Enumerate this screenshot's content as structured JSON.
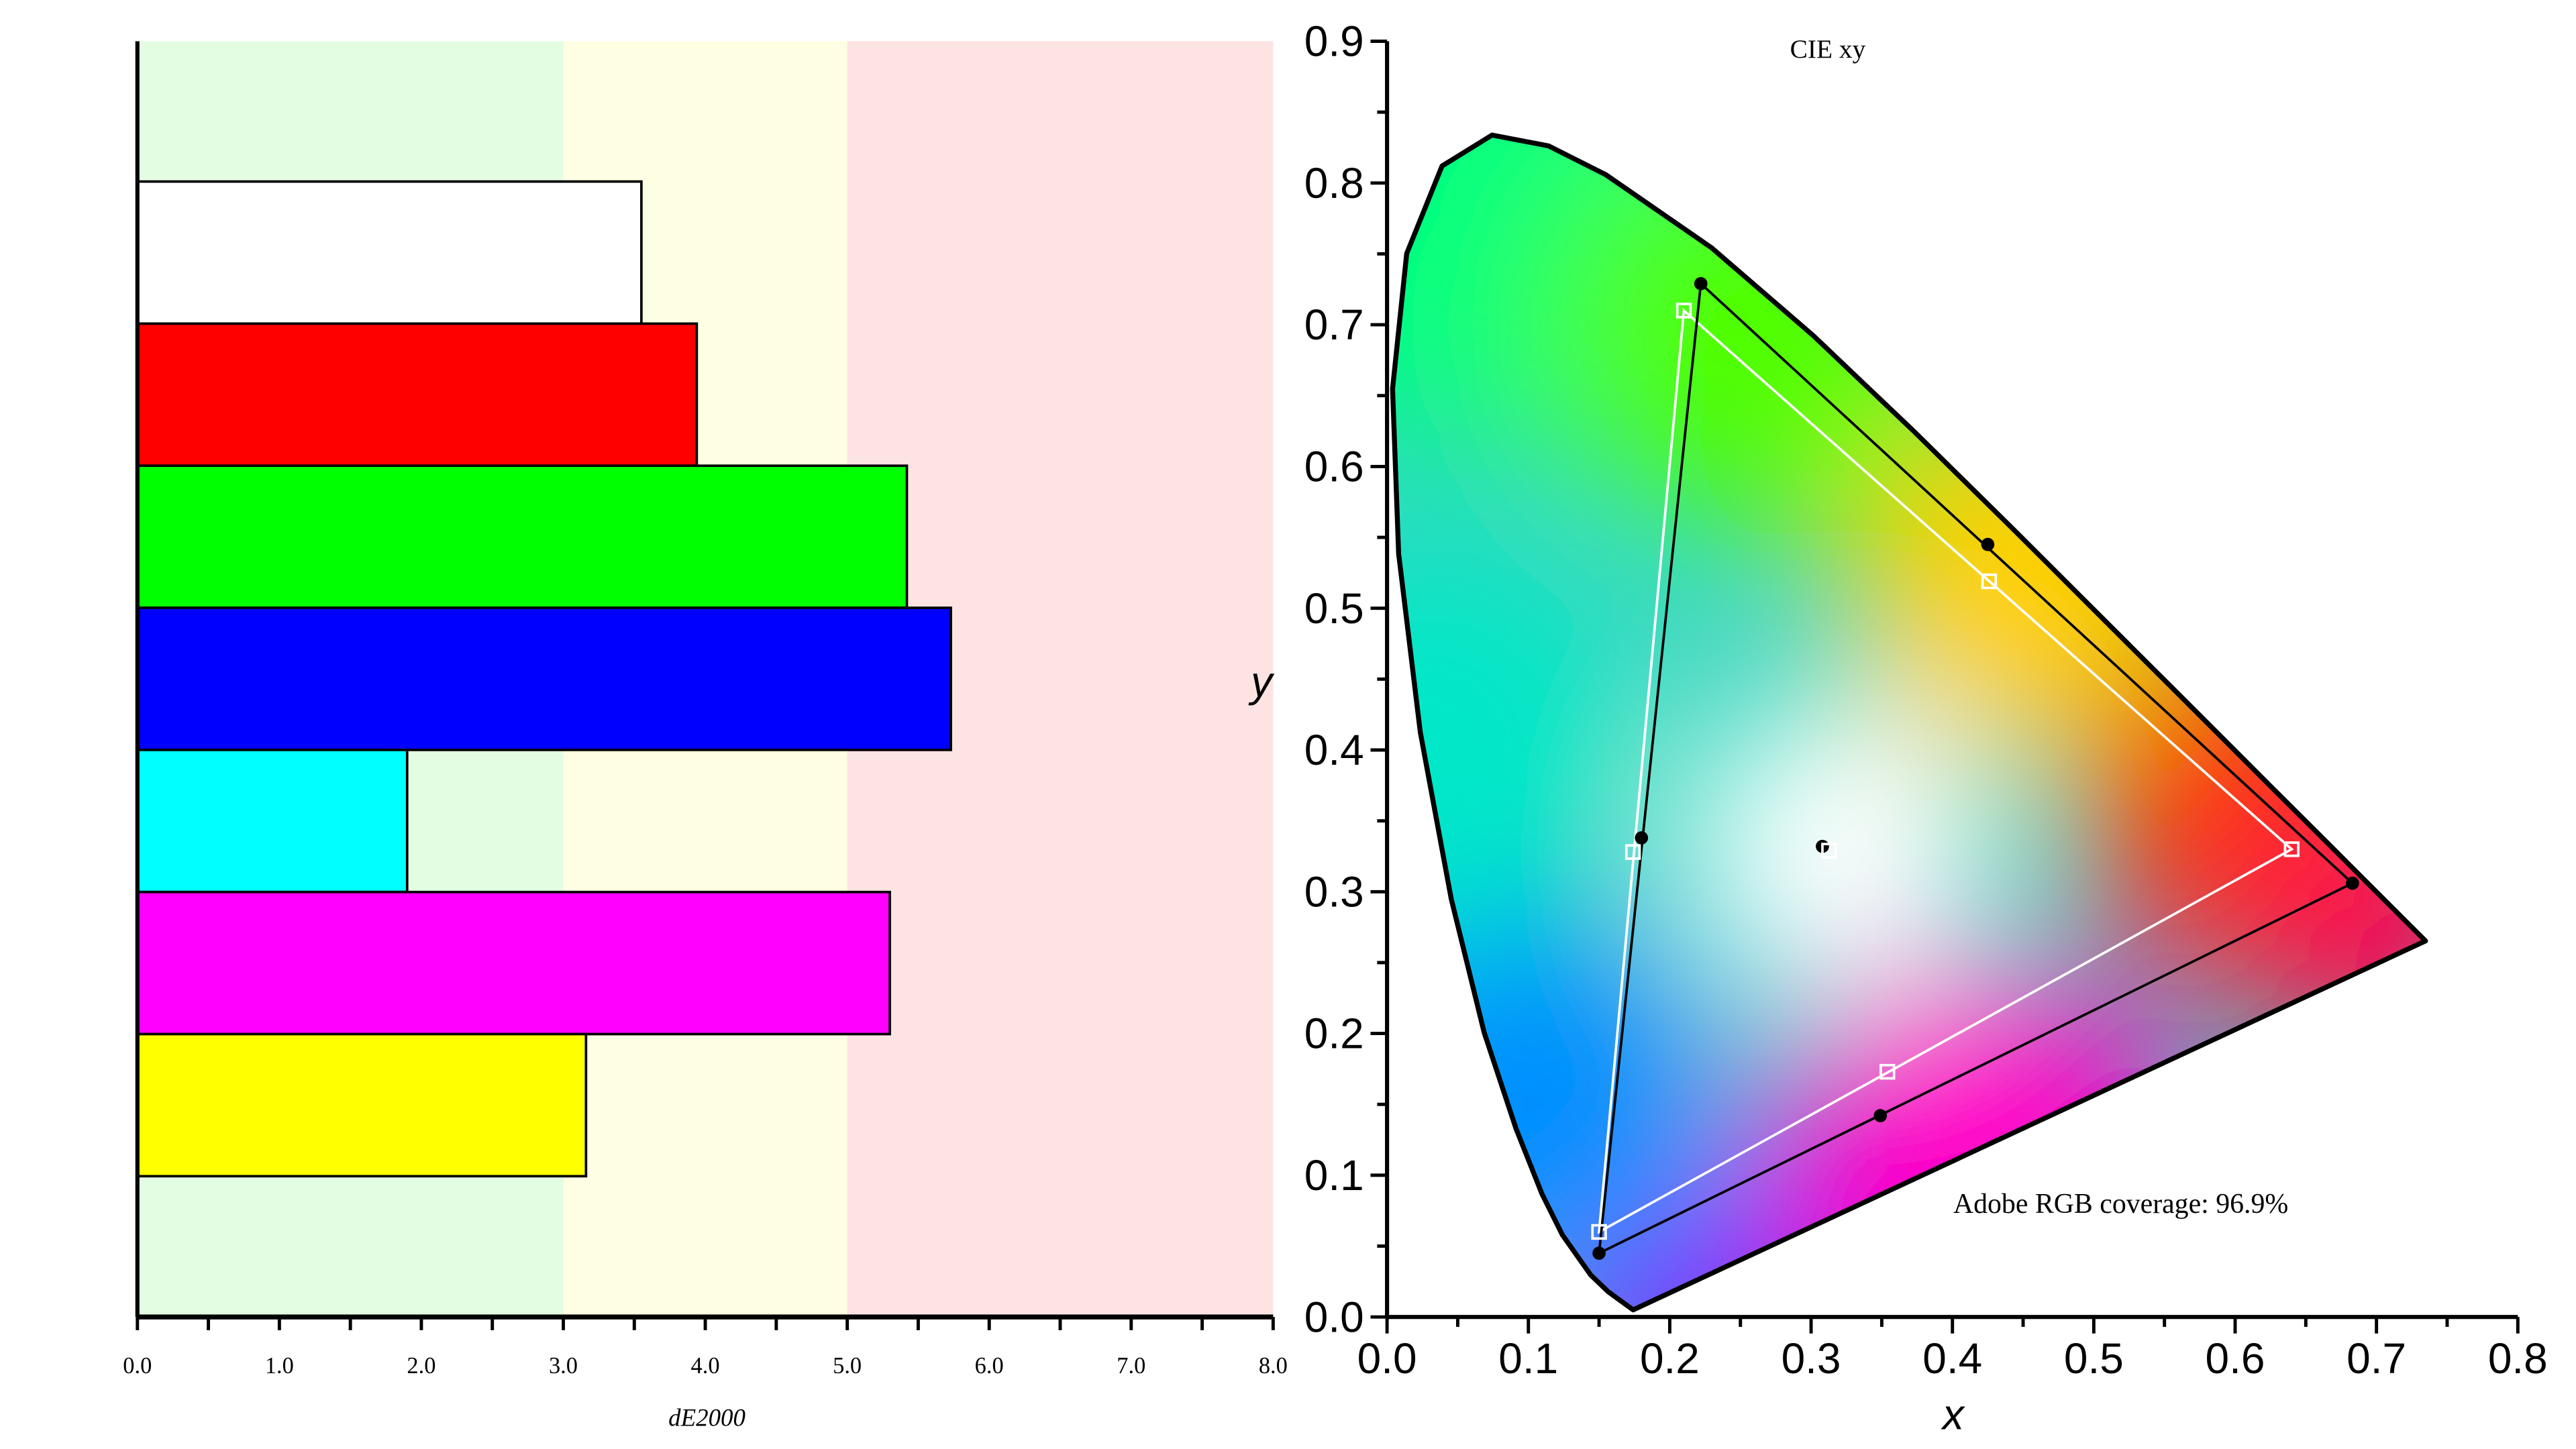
{
  "chart_data": [
    {
      "type": "bar",
      "orientation": "horizontal",
      "xlabel": "dE2000",
      "xlim": [
        0,
        8
      ],
      "xticks": [
        "0.0",
        "1.0",
        "2.0",
        "3.0",
        "4.0",
        "5.0",
        "6.0",
        "7.0",
        "8.0"
      ],
      "bands": [
        {
          "from": 0,
          "to": 3,
          "color": "#e3fde3"
        },
        {
          "from": 3,
          "to": 5,
          "color": "#fefee3"
        },
        {
          "from": 5,
          "to": 8,
          "color": "#fee3e3"
        }
      ],
      "bars": [
        {
          "name": "white",
          "color": "#ffffff",
          "value": 3.55
        },
        {
          "name": "red",
          "color": "#ff0000",
          "value": 3.94
        },
        {
          "name": "green",
          "color": "#00ff00",
          "value": 5.42
        },
        {
          "name": "blue",
          "color": "#0000ff",
          "value": 5.73
        },
        {
          "name": "cyan",
          "color": "#00ffff",
          "value": 1.9
        },
        {
          "name": "magenta",
          "color": "#ff00ff",
          "value": 5.3
        },
        {
          "name": "yellow",
          "color": "#ffff00",
          "value": 3.16
        }
      ]
    },
    {
      "type": "scatter",
      "title": "CIE xy",
      "xlabel": "x",
      "ylabel": "y",
      "xlim": [
        0,
        0.8
      ],
      "ylim": [
        0,
        0.9
      ],
      "xticks": [
        "0.0",
        "0.1",
        "0.2",
        "0.3",
        "0.4",
        "0.5",
        "0.6",
        "0.7",
        "0.8"
      ],
      "yticks": [
        "0.0",
        "0.1",
        "0.2",
        "0.3",
        "0.4",
        "0.5",
        "0.6",
        "0.7",
        "0.8",
        "0.9"
      ],
      "annotation": "Adobe RGB coverage: 96.9%",
      "locus": [
        [
          0.1741,
          0.005
        ],
        [
          0.1566,
          0.0177
        ],
        [
          0.144,
          0.0297
        ],
        [
          0.1241,
          0.0578
        ],
        [
          0.1096,
          0.0868
        ],
        [
          0.0913,
          0.1327
        ],
        [
          0.0687,
          0.2007
        ],
        [
          0.0454,
          0.295
        ],
        [
          0.0235,
          0.4127
        ],
        [
          0.0082,
          0.5384
        ],
        [
          0.0039,
          0.6548
        ],
        [
          0.0139,
          0.7502
        ],
        [
          0.0389,
          0.812
        ],
        [
          0.0743,
          0.8338
        ],
        [
          0.1142,
          0.8262
        ],
        [
          0.1547,
          0.8059
        ],
        [
          0.2296,
          0.7543
        ],
        [
          0.3016,
          0.6923
        ],
        [
          0.3731,
          0.6245
        ],
        [
          0.4441,
          0.5547
        ],
        [
          0.5125,
          0.4866
        ],
        [
          0.5752,
          0.4242
        ],
        [
          0.627,
          0.3725
        ],
        [
          0.6658,
          0.334
        ],
        [
          0.6915,
          0.3083
        ],
        [
          0.719,
          0.2809
        ],
        [
          0.7347,
          0.2653
        ]
      ],
      "measured": {
        "primaries": [
          [
            0.683,
            0.306
          ],
          [
            0.222,
            0.729
          ],
          [
            0.15,
            0.045
          ]
        ],
        "secondaries": [
          [
            0.425,
            0.545
          ],
          [
            0.18,
            0.338
          ],
          [
            0.349,
            0.142
          ]
        ],
        "white": [
          0.308,
          0.332
        ]
      },
      "target": {
        "primaries": [
          [
            0.64,
            0.33
          ],
          [
            0.21,
            0.71
          ],
          [
            0.15,
            0.06
          ]
        ],
        "secondaries": [
          [
            0.426,
            0.519
          ],
          [
            0.174,
            0.328
          ],
          [
            0.354,
            0.173
          ]
        ],
        "white": [
          0.3127,
          0.329
        ]
      }
    }
  ]
}
